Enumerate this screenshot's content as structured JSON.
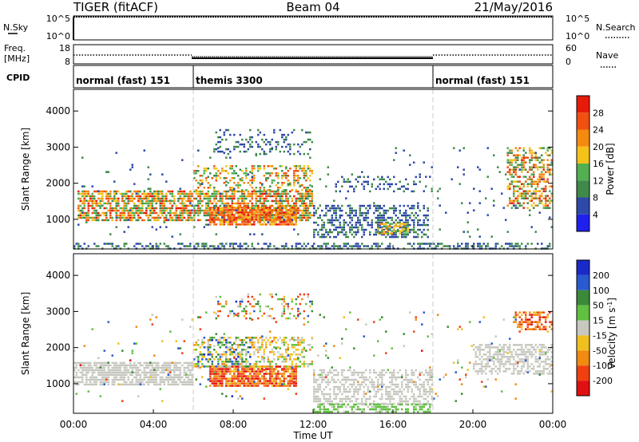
{
  "header": {
    "radar": "TIGER (fitACF)",
    "beam": "Beam 04",
    "date": "21/May/2016"
  },
  "noise_panel": {
    "left_label": "N.Sky",
    "right_label": "N.Search",
    "left_ticks": [
      "10^5",
      "10^0"
    ],
    "right_ticks": [
      "10^5",
      "10^0"
    ]
  },
  "freq_panel": {
    "left_label_line1": "Freq.",
    "left_label_line2": "[MHz]",
    "right_label": "Nave",
    "left_ticks": [
      "18",
      "8"
    ],
    "right_ticks": [
      "60",
      "0"
    ]
  },
  "cpid_panel": {
    "label": "CPID",
    "segments": [
      {
        "name": "normal (fast) 151",
        "start": 0,
        "end": 6
      },
      {
        "name": "themis 3300",
        "start": 6,
        "end": 18
      },
      {
        "name": "normal (fast) 151",
        "start": 18,
        "end": 24
      }
    ]
  },
  "time_axis": {
    "label": "Time UT",
    "ticks": [
      "00:00",
      "04:00",
      "08:00",
      "12:00",
      "16:00",
      "20:00",
      "00:00"
    ]
  },
  "colors": {
    "power": [
      "#1f1ff0",
      "#2e4aa8",
      "#3f8a4a",
      "#52b052",
      "#f5c21a",
      "#f58a10",
      "#f05010",
      "#e81a0a"
    ],
    "velocity": [
      "#1a2ac8",
      "#2a5ad0",
      "#3a8a3a",
      "#60c040",
      "#c8c8c0",
      "#f0c020",
      "#f08a10",
      "#f04010",
      "#e01010"
    ]
  },
  "chart_data": [
    {
      "type": "heatmap",
      "title": "Power",
      "ylabel": "Slant Range [km]",
      "xlabel": "Time UT",
      "x_range_hours": [
        0,
        24
      ],
      "ylim": [
        180,
        4600
      ],
      "y_ticks": [
        1000,
        2000,
        3000,
        4000
      ],
      "colorbar": {
        "label": "Power [dB]",
        "ticks": [
          "4",
          "8",
          "12",
          "16",
          "20",
          "24",
          "28"
        ],
        "range": [
          0,
          32
        ]
      },
      "regions": [
        {
          "t0": 0.2,
          "t1": 12.0,
          "r0": 950,
          "r1": 1800,
          "d": 0.7,
          "v0": 8,
          "v1": 30
        },
        {
          "t0": 6.8,
          "t1": 11.2,
          "r0": 850,
          "r1": 1350,
          "d": 0.85,
          "v0": 18,
          "v1": 30
        },
        {
          "t0": 6.0,
          "t1": 12.0,
          "r0": 1800,
          "r1": 2500,
          "d": 0.35,
          "v0": 10,
          "v1": 26
        },
        {
          "t0": 12.0,
          "t1": 17.8,
          "r0": 500,
          "r1": 1400,
          "d": 0.5,
          "v0": 4,
          "v1": 10
        },
        {
          "t0": 15.2,
          "t1": 16.8,
          "r0": 600,
          "r1": 900,
          "d": 0.7,
          "v0": 10,
          "v1": 24
        },
        {
          "t0": 13.0,
          "t1": 17.5,
          "r0": 1800,
          "r1": 2200,
          "d": 0.2,
          "v0": 4,
          "v1": 10
        },
        {
          "t0": 7.0,
          "t1": 12.0,
          "r0": 2800,
          "r1": 3500,
          "d": 0.25,
          "v0": 4,
          "v1": 12
        },
        {
          "t0": 21.7,
          "t1": 24.0,
          "r0": 1300,
          "r1": 3000,
          "d": 0.5,
          "v0": 8,
          "v1": 30
        },
        {
          "t0": 0.0,
          "t1": 24.0,
          "r0": 200,
          "r1": 350,
          "d": 0.45,
          "v0": 4,
          "v1": 12
        },
        {
          "t0": 0.0,
          "t1": 24.0,
          "r0": 500,
          "r1": 3000,
          "d": 0.025,
          "v0": 4,
          "v1": 12
        }
      ]
    },
    {
      "type": "heatmap",
      "title": "Velocity",
      "ylabel": "Slant Range [km]",
      "xlabel": "Time UT",
      "x_range_hours": [
        0,
        24
      ],
      "ylim": [
        180,
        4600
      ],
      "y_ticks": [
        1000,
        2000,
        3000,
        4000
      ],
      "colorbar": {
        "label": "Velocity [m s-1]",
        "ticks": [
          "200",
          "100",
          "50",
          "15",
          "-15",
          "-50",
          "-100",
          "-200"
        ],
        "range": [
          -250,
          250
        ]
      },
      "regions": [
        {
          "t0": 0.0,
          "t1": 6.0,
          "r0": 950,
          "r1": 1600,
          "d": 0.75,
          "v0": -14,
          "v1": 14
        },
        {
          "t0": 6.8,
          "t1": 11.2,
          "r0": 950,
          "r1": 1500,
          "d": 0.85,
          "v0": -240,
          "v1": -60
        },
        {
          "t0": 6.0,
          "t1": 9.0,
          "r0": 1500,
          "r1": 2300,
          "d": 0.5,
          "v0": -120,
          "v1": 220
        },
        {
          "t0": 9.0,
          "t1": 12.0,
          "r0": 1500,
          "r1": 2300,
          "d": 0.4,
          "v0": -100,
          "v1": 60
        },
        {
          "t0": 12.0,
          "t1": 18.0,
          "r0": 450,
          "r1": 1400,
          "d": 0.5,
          "v0": -15,
          "v1": 15
        },
        {
          "t0": 12.0,
          "t1": 18.0,
          "r0": 220,
          "r1": 450,
          "d": 0.6,
          "v0": 15,
          "v1": 60
        },
        {
          "t0": 20.0,
          "t1": 24.0,
          "r0": 1300,
          "r1": 2100,
          "d": 0.6,
          "v0": -14,
          "v1": 14
        },
        {
          "t0": 22.0,
          "t1": 24.0,
          "r0": 2500,
          "r1": 3000,
          "d": 0.5,
          "v0": -220,
          "v1": -60
        },
        {
          "t0": 7.0,
          "t1": 12.0,
          "r0": 2800,
          "r1": 3500,
          "d": 0.2,
          "v0": -200,
          "v1": 200
        },
        {
          "t0": 0.0,
          "t1": 24.0,
          "r0": 500,
          "r1": 3000,
          "d": 0.025,
          "v0": -200,
          "v1": 200
        }
      ]
    }
  ]
}
